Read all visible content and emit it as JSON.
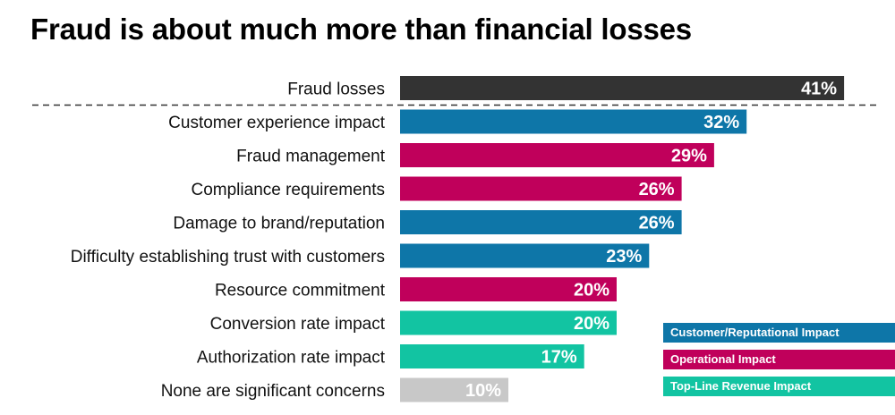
{
  "chart_data": {
    "type": "bar",
    "orientation": "horizontal",
    "title": "Fraud is about much more than financial losses",
    "xlabel": "",
    "ylabel": "",
    "xlim": [
      0,
      45
    ],
    "grid": false,
    "legend_position": "bottom-right",
    "categories": [
      "Fraud losses",
      "Customer experience impact",
      "Fraud management",
      "Compliance requirements",
      "Damage to brand/reputation",
      "Difficulty establishing trust with customers",
      "Resource commitment",
      "Conversion rate impact",
      "Authorization rate impact",
      "None are significant concerns"
    ],
    "values": [
      41,
      32,
      29,
      26,
      26,
      23,
      20,
      20,
      17,
      10
    ],
    "value_labels": [
      "41%",
      "32%",
      "29%",
      "26%",
      "26%",
      "23%",
      "20%",
      "20%",
      "17%",
      "10%"
    ],
    "groups": [
      "fraud-losses",
      "customer",
      "operational",
      "operational",
      "customer",
      "customer",
      "operational",
      "revenue",
      "revenue",
      "none"
    ],
    "legend": [
      {
        "label": "Customer/Reputational Impact",
        "group": "customer"
      },
      {
        "label": "Operational Impact",
        "group": "operational"
      },
      {
        "label": "Top-Line Revenue Impact",
        "group": "revenue"
      }
    ],
    "colors": {
      "fraud-losses": "#333333",
      "customer": "#0e76a8",
      "operational": "#c0005b",
      "revenue": "#12c4a2",
      "none": "#c8c8c8"
    },
    "separator_after_index": 0
  }
}
